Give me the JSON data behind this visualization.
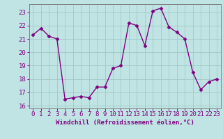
{
  "x": [
    0,
    1,
    2,
    3,
    4,
    5,
    6,
    7,
    8,
    9,
    10,
    11,
    12,
    13,
    14,
    15,
    16,
    17,
    18,
    19,
    20,
    21,
    22,
    23
  ],
  "y": [
    21.3,
    21.8,
    21.2,
    21.0,
    16.5,
    16.6,
    16.7,
    16.6,
    17.4,
    17.4,
    18.8,
    19.0,
    22.2,
    22.0,
    20.5,
    23.1,
    23.3,
    21.9,
    21.5,
    21.0,
    18.5,
    17.2,
    17.8,
    18.0
  ],
  "line_color": "#800080",
  "marker": "D",
  "marker_size": 2.5,
  "bg_color": "#c0e4e4",
  "grid_color": "#a0c8c8",
  "xlabel": "Windchill (Refroidissement éolien,°C)",
  "ylim": [
    15.8,
    23.6
  ],
  "yticks": [
    16,
    17,
    18,
    19,
    20,
    21,
    22,
    23
  ],
  "xlim": [
    -0.5,
    23.5
  ],
  "xticks": [
    0,
    1,
    2,
    3,
    4,
    5,
    6,
    7,
    8,
    9,
    10,
    11,
    12,
    13,
    14,
    15,
    16,
    17,
    18,
    19,
    20,
    21,
    22,
    23
  ],
  "tick_color": "#800080",
  "label_color": "#800080",
  "spine_color": "#808080",
  "line_width": 1.0,
  "font_size_tick": 6.5,
  "font_size_label": 6.5
}
